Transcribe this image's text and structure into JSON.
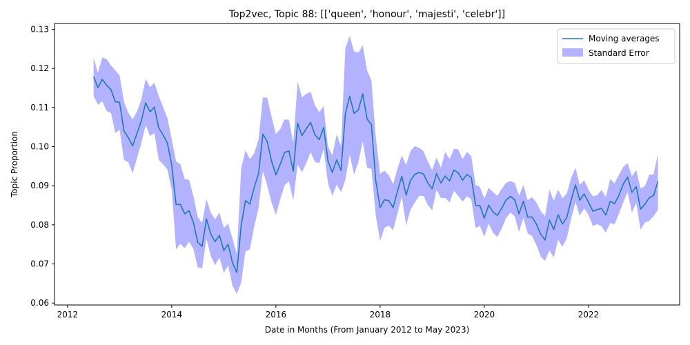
{
  "chart_data": {
    "type": "line",
    "title": "Top2vec, Topic 88: [['queen', 'honour', 'majesti', 'celebr']]",
    "xlabel": "Date in Months (From January 2012 to May 2023)",
    "ylabel": "Topic Proportion",
    "xlim": [
      "2011-10-01",
      "2023-10-01"
    ],
    "ylim": [
      0.0595,
      0.1315
    ],
    "x_ticks": [
      "2012",
      "2014",
      "2016",
      "2018",
      "2020",
      "2022"
    ],
    "y_ticks": [
      "0.06",
      "0.07",
      "0.08",
      "0.09",
      "0.10",
      "0.11",
      "0.12",
      "0.13"
    ],
    "grid": false,
    "legend_position": "top-right",
    "colors": {
      "line": "#1f77b4",
      "band": "#0000ff",
      "band_opacity": 0.3,
      "axes": "#000000",
      "background": "#ffffff"
    },
    "series": [
      {
        "name": "Moving averages",
        "x": [
          "2012-07",
          "2012-08",
          "2012-09",
          "2012-10",
          "2012-11",
          "2012-12",
          "2013-01",
          "2013-02",
          "2013-03",
          "2013-04",
          "2013-05",
          "2013-06",
          "2013-07",
          "2013-08",
          "2013-09",
          "2013-10",
          "2013-11",
          "2013-12",
          "2014-01",
          "2014-02",
          "2014-03",
          "2014-04",
          "2014-05",
          "2014-06",
          "2014-07",
          "2014-08",
          "2014-09",
          "2014-10",
          "2014-11",
          "2014-12",
          "2015-01",
          "2015-02",
          "2015-03",
          "2015-04",
          "2015-05",
          "2015-06",
          "2015-07",
          "2015-08",
          "2015-09",
          "2015-10",
          "2015-11",
          "2015-12",
          "2016-01",
          "2016-02",
          "2016-03",
          "2016-04",
          "2016-05",
          "2016-06",
          "2016-07",
          "2016-08",
          "2016-09",
          "2016-10",
          "2016-11",
          "2016-12",
          "2017-01",
          "2017-02",
          "2017-03",
          "2017-04",
          "2017-05",
          "2017-06",
          "2017-07",
          "2017-08",
          "2017-09",
          "2017-10",
          "2017-11",
          "2017-12",
          "2018-01",
          "2018-02",
          "2018-03",
          "2018-04",
          "2018-05",
          "2018-06",
          "2018-07",
          "2018-08",
          "2018-09",
          "2018-10",
          "2018-11",
          "2018-12",
          "2019-01",
          "2019-02",
          "2019-03",
          "2019-04",
          "2019-05",
          "2019-06",
          "2019-07",
          "2019-08",
          "2019-09",
          "2019-10",
          "2019-11",
          "2019-12",
          "2020-01",
          "2020-02",
          "2020-03",
          "2020-04",
          "2020-05",
          "2020-06",
          "2020-07",
          "2020-08",
          "2020-09",
          "2020-10",
          "2020-11",
          "2020-12",
          "2021-01",
          "2021-02",
          "2021-03",
          "2021-04",
          "2021-05",
          "2021-06",
          "2021-07",
          "2021-08",
          "2021-09",
          "2021-10",
          "2021-11",
          "2021-12",
          "2022-01",
          "2022-02",
          "2022-03",
          "2022-04",
          "2022-05",
          "2022-06",
          "2022-07",
          "2022-08",
          "2022-09",
          "2022-10",
          "2022-11",
          "2022-12",
          "2023-01",
          "2023-02",
          "2023-03",
          "2023-04",
          "2023-05"
        ],
        "y": [
          0.1179,
          0.1151,
          0.1172,
          0.1157,
          0.1146,
          0.1115,
          0.1113,
          0.104,
          0.1023,
          0.1002,
          0.1034,
          0.1066,
          0.1112,
          0.1089,
          0.1101,
          0.1048,
          0.103,
          0.1009,
          0.0953,
          0.0852,
          0.0852,
          0.0828,
          0.0836,
          0.0806,
          0.0755,
          0.0745,
          0.0815,
          0.0776,
          0.0757,
          0.0773,
          0.0734,
          0.075,
          0.0703,
          0.0678,
          0.0798,
          0.0862,
          0.0853,
          0.0896,
          0.0931,
          0.1032,
          0.1013,
          0.0963,
          0.0928,
          0.0955,
          0.0985,
          0.0989,
          0.0937,
          0.106,
          0.1028,
          0.1046,
          0.1062,
          0.103,
          0.1018,
          0.1049,
          0.0963,
          0.0934,
          0.0966,
          0.0939,
          0.1084,
          0.1129,
          0.1085,
          0.1094,
          0.1135,
          0.1071,
          0.1056,
          0.0913,
          0.0844,
          0.0864,
          0.0862,
          0.0844,
          0.0886,
          0.0924,
          0.0876,
          0.0914,
          0.0929,
          0.0934,
          0.093,
          0.0907,
          0.0892,
          0.0931,
          0.0907,
          0.0925,
          0.0912,
          0.094,
          0.0933,
          0.0914,
          0.0929,
          0.0921,
          0.085,
          0.0849,
          0.0817,
          0.085,
          0.0833,
          0.0824,
          0.0842,
          0.0863,
          0.0873,
          0.0864,
          0.0828,
          0.086,
          0.082,
          0.082,
          0.0802,
          0.0776,
          0.0761,
          0.0812,
          0.0788,
          0.0826,
          0.0802,
          0.0819,
          0.0863,
          0.0902,
          0.0863,
          0.0879,
          0.0858,
          0.0835,
          0.0839,
          0.0842,
          0.0825,
          0.086,
          0.0854,
          0.0875,
          0.0904,
          0.0922,
          0.0883,
          0.0898,
          0.084,
          0.0853,
          0.0869,
          0.0875,
          0.0911
        ]
      },
      {
        "name": "Standard Error",
        "x_ref": "Moving averages",
        "upper": [
          0.1227,
          0.1189,
          0.1228,
          0.1224,
          0.1208,
          0.1195,
          0.1182,
          0.1115,
          0.1087,
          0.107,
          0.109,
          0.1121,
          0.1173,
          0.1152,
          0.1163,
          0.113,
          0.1102,
          0.1073,
          0.1019,
          0.0962,
          0.0955,
          0.0917,
          0.0915,
          0.0873,
          0.082,
          0.0805,
          0.0866,
          0.0831,
          0.0814,
          0.0831,
          0.0792,
          0.0803,
          0.0765,
          0.0725,
          0.0945,
          0.0991,
          0.0968,
          0.0983,
          0.1018,
          0.1126,
          0.1125,
          0.1076,
          0.1032,
          0.1045,
          0.107,
          0.1068,
          0.101,
          0.1166,
          0.1126,
          0.1135,
          0.114,
          0.1105,
          0.1088,
          0.1104,
          0.1,
          0.0978,
          0.1031,
          0.1001,
          0.1252,
          0.1283,
          0.1244,
          0.124,
          0.1259,
          0.1195,
          0.1169,
          0.1025,
          0.093,
          0.0938,
          0.0927,
          0.0904,
          0.0944,
          0.0977,
          0.0953,
          0.0989,
          0.1001,
          0.0997,
          0.0988,
          0.0962,
          0.094,
          0.0972,
          0.0946,
          0.0986,
          0.0968,
          0.0994,
          0.0993,
          0.0968,
          0.0986,
          0.0976,
          0.0902,
          0.0897,
          0.0867,
          0.0895,
          0.0884,
          0.0874,
          0.0892,
          0.0907,
          0.0912,
          0.0907,
          0.0875,
          0.0902,
          0.0863,
          0.0871,
          0.0857,
          0.0835,
          0.0822,
          0.089,
          0.0862,
          0.089,
          0.0868,
          0.088,
          0.092,
          0.0946,
          0.0902,
          0.0914,
          0.089,
          0.0873,
          0.0876,
          0.0889,
          0.0871,
          0.0917,
          0.0906,
          0.0928,
          0.0948,
          0.0958,
          0.0924,
          0.094,
          0.0893,
          0.0899,
          0.0928,
          0.0929,
          0.0982
        ],
        "lower": [
          0.113,
          0.1107,
          0.1116,
          0.1091,
          0.1086,
          0.1035,
          0.1043,
          0.0966,
          0.096,
          0.0932,
          0.097,
          0.1009,
          0.1055,
          0.1027,
          0.1035,
          0.0966,
          0.0955,
          0.0941,
          0.0889,
          0.0737,
          0.0752,
          0.074,
          0.0757,
          0.0738,
          0.0691,
          0.0689,
          0.0765,
          0.072,
          0.0697,
          0.0716,
          0.0677,
          0.0696,
          0.0644,
          0.0623,
          0.0652,
          0.0732,
          0.0737,
          0.0796,
          0.0843,
          0.0938,
          0.09,
          0.0857,
          0.0825,
          0.0865,
          0.0901,
          0.0911,
          0.0862,
          0.0954,
          0.0935,
          0.0958,
          0.0985,
          0.0961,
          0.0958,
          0.0994,
          0.0906,
          0.0874,
          0.0903,
          0.0883,
          0.0916,
          0.0979,
          0.0929,
          0.096,
          0.1014,
          0.0946,
          0.0943,
          0.0824,
          0.0759,
          0.0792,
          0.0798,
          0.0786,
          0.0829,
          0.0872,
          0.0799,
          0.0839,
          0.0857,
          0.0874,
          0.0874,
          0.0851,
          0.0837,
          0.089,
          0.0868,
          0.0869,
          0.0857,
          0.0887,
          0.0874,
          0.0859,
          0.0873,
          0.0865,
          0.0792,
          0.0797,
          0.077,
          0.0803,
          0.078,
          0.0769,
          0.079,
          0.0817,
          0.0831,
          0.0822,
          0.0782,
          0.0818,
          0.0778,
          0.0771,
          0.0748,
          0.0719,
          0.0708,
          0.0735,
          0.0716,
          0.0762,
          0.0744,
          0.0766,
          0.0815,
          0.0858,
          0.0823,
          0.0842,
          0.0825,
          0.0797,
          0.0802,
          0.0796,
          0.078,
          0.0805,
          0.0801,
          0.0828,
          0.0857,
          0.0884,
          0.0831,
          0.0856,
          0.0787,
          0.0806,
          0.081,
          0.0822,
          0.0839
        ]
      }
    ]
  }
}
